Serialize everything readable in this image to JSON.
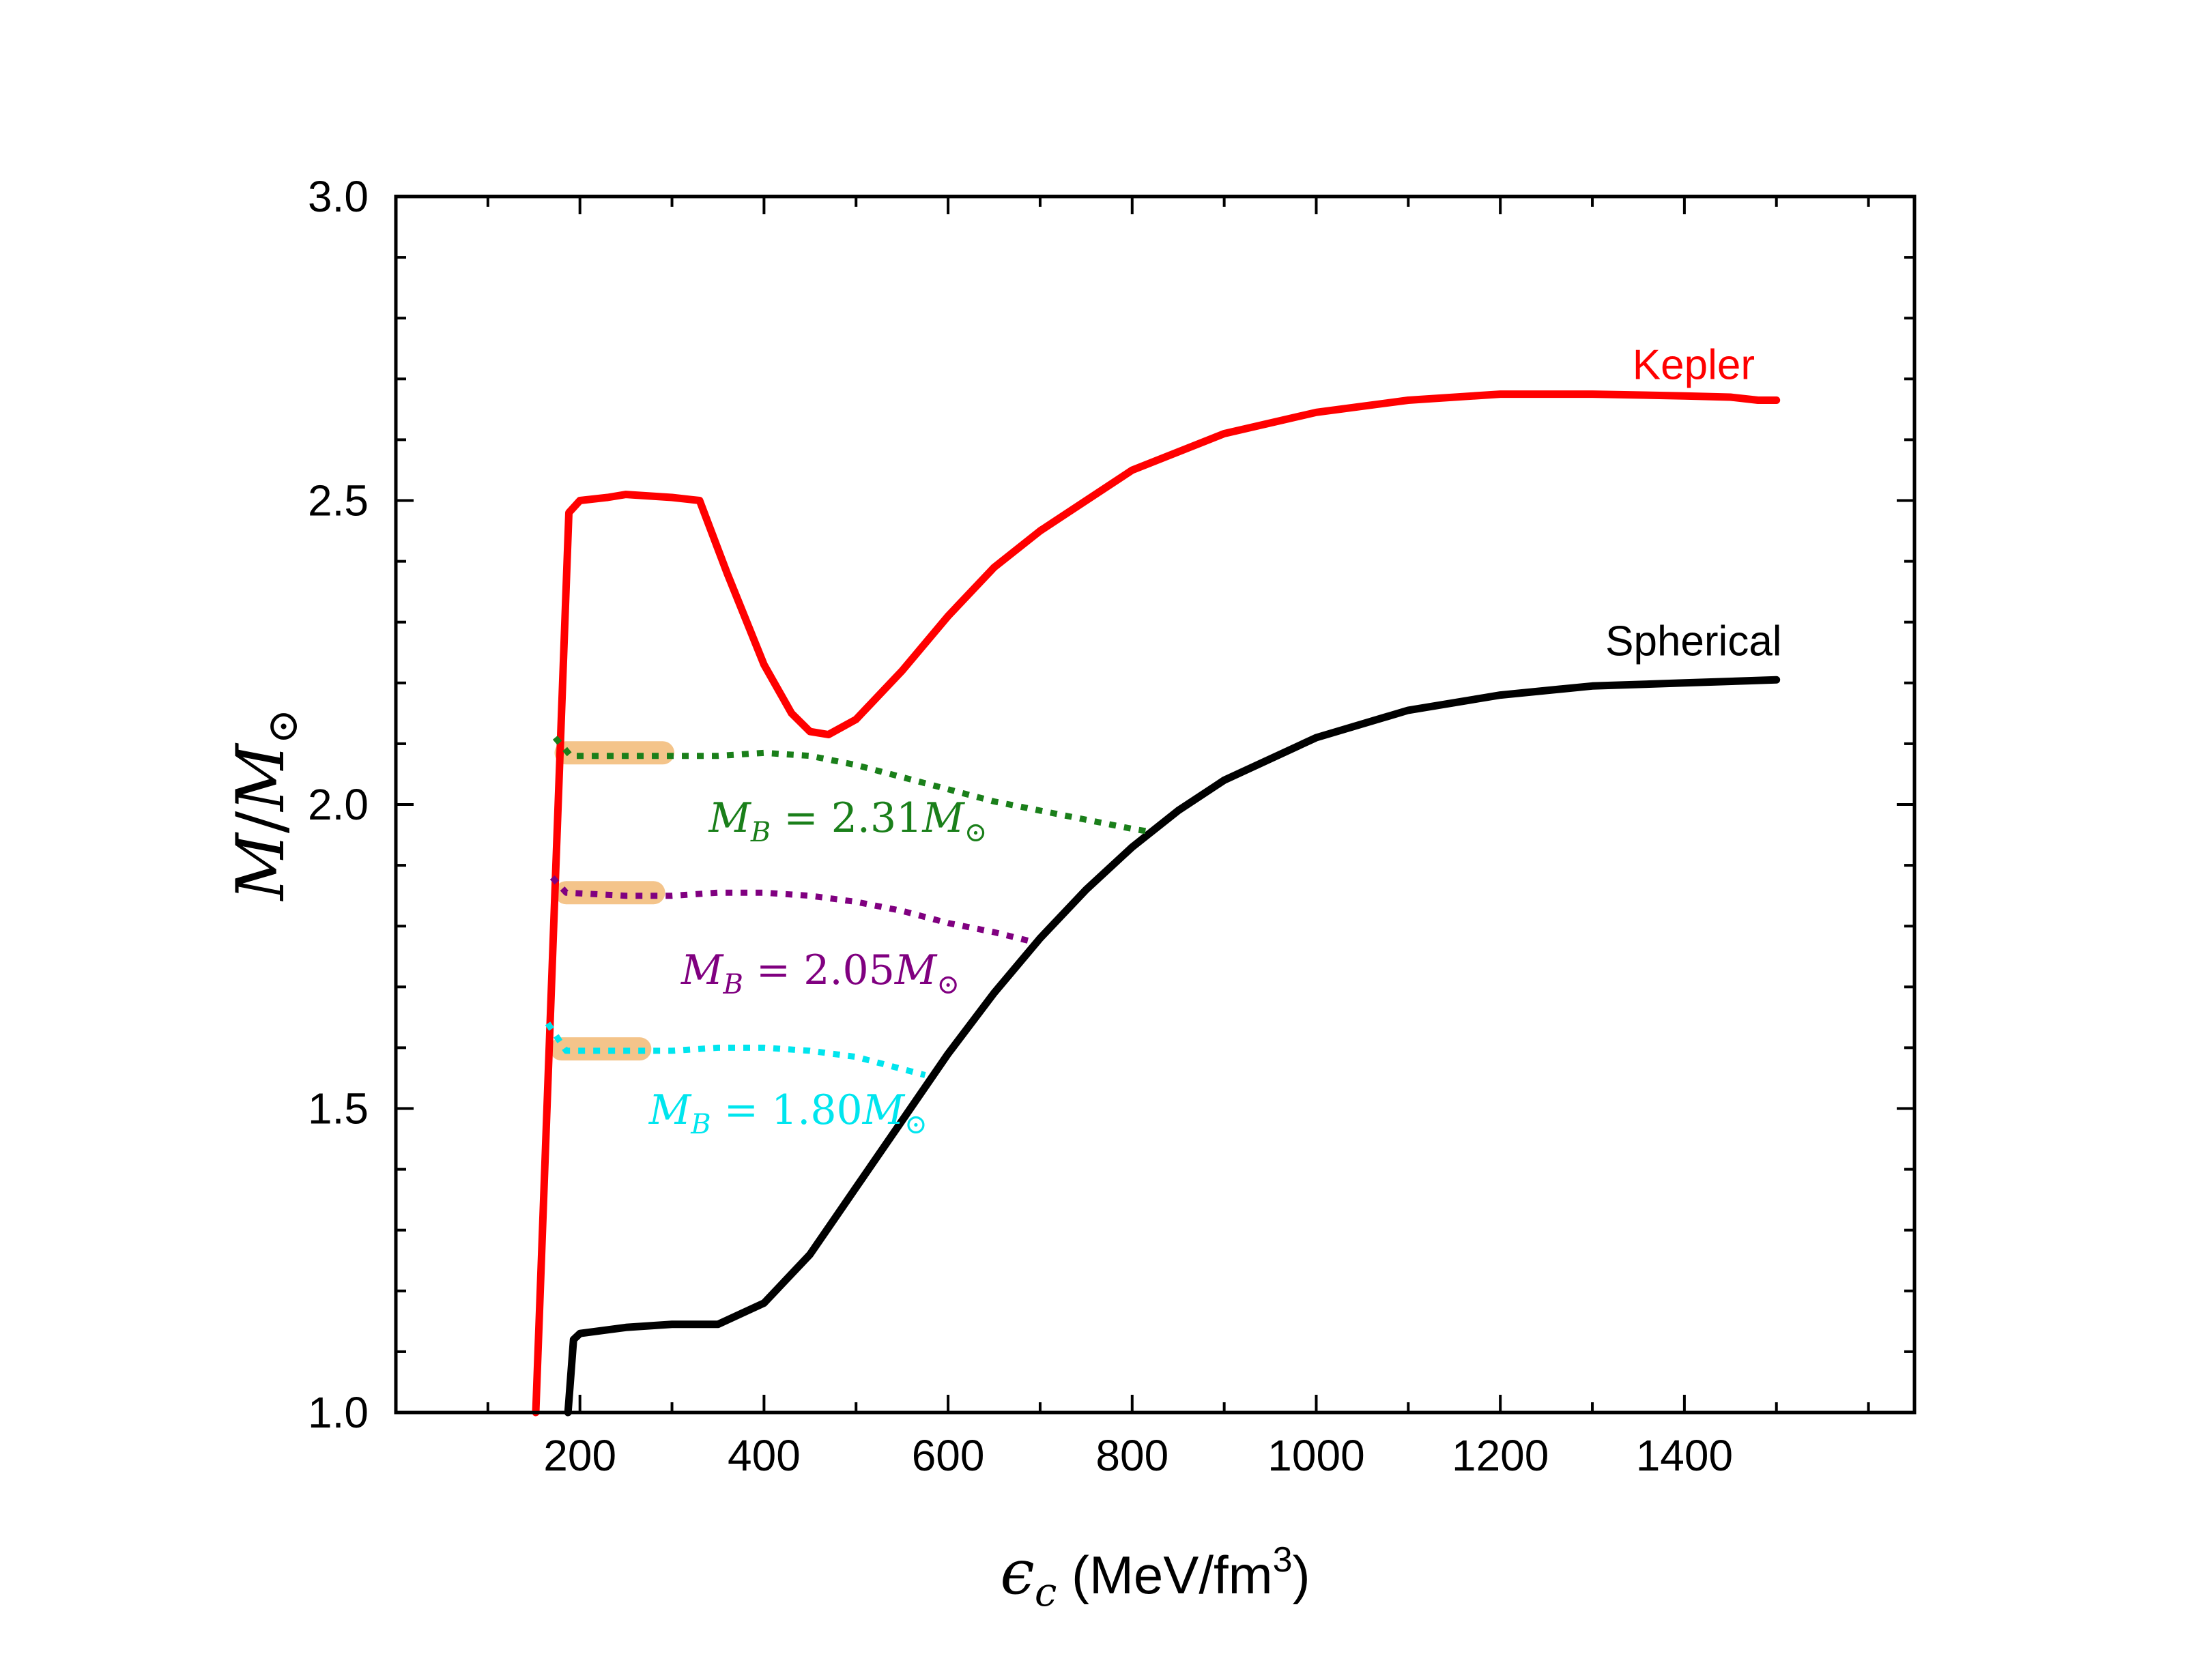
{
  "chart_data": {
    "type": "line",
    "xlabel": {
      "sym": "ϵ",
      "sub": "c",
      "unit": " (MeV/fm",
      "sup": "3",
      "close": ")"
    },
    "ylabel": {
      "a": "M",
      "slash": "/",
      "b": "M",
      "sub": "⊙"
    },
    "xlim": [
      0,
      1650
    ],
    "ylim": [
      1.0,
      3.0
    ],
    "xticks": [
      200,
      400,
      600,
      800,
      1000,
      1200,
      1400
    ],
    "xtick_labels": [
      "200",
      "400",
      "600",
      "800",
      "1000",
      "1200",
      "1400"
    ],
    "yticks": [
      1.0,
      1.5,
      2.0,
      2.5,
      3.0
    ],
    "ytick_labels": [
      "1.0",
      "1.5",
      "2.0",
      "2.5",
      "3.0"
    ],
    "grid": false,
    "colors": {
      "kepler": "#ff0000",
      "spherical": "#000000",
      "mb231": "#1a7f1a",
      "mb205": "#800080",
      "mb180": "#00e5ee",
      "highlight": "#f4c48a"
    },
    "series": [
      {
        "name": "Kepler",
        "style": "solid",
        "x": [
          152,
          188,
          200,
          230,
          250,
          300,
          330,
          360,
          400,
          430,
          450,
          470,
          500,
          550,
          600,
          650,
          700,
          800,
          900,
          1000,
          1100,
          1200,
          1300,
          1400,
          1450,
          1480,
          1500
        ],
        "y": [
          1.0,
          2.48,
          2.5,
          2.505,
          2.51,
          2.505,
          2.5,
          2.38,
          2.23,
          2.15,
          2.12,
          2.115,
          2.14,
          2.22,
          2.31,
          2.39,
          2.45,
          2.55,
          2.61,
          2.645,
          2.665,
          2.675,
          2.675,
          2.672,
          2.67,
          2.665,
          2.665
        ]
      },
      {
        "name": "Spherical",
        "style": "solid",
        "x": [
          187,
          193,
          200,
          250,
          300,
          350,
          400,
          450,
          500,
          550,
          600,
          650,
          700,
          750,
          800,
          850,
          900,
          1000,
          1100,
          1200,
          1300,
          1400,
          1500
        ],
        "y": [
          1.0,
          1.12,
          1.13,
          1.14,
          1.145,
          1.145,
          1.18,
          1.26,
          1.37,
          1.48,
          1.59,
          1.69,
          1.78,
          1.86,
          1.93,
          1.99,
          2.04,
          2.11,
          2.155,
          2.18,
          2.195,
          2.2,
          2.205
        ]
      },
      {
        "name": "M_B = 2.31M⊙",
        "style": "dotted",
        "x": [
          173,
          190,
          250,
          300,
          350,
          400,
          450,
          500,
          550,
          600,
          650,
          700,
          750,
          800,
          820
        ],
        "y": [
          2.11,
          2.08,
          2.08,
          2.08,
          2.08,
          2.085,
          2.08,
          2.065,
          2.045,
          2.025,
          2.005,
          1.99,
          1.975,
          1.96,
          1.955
        ]
      },
      {
        "name": "M_B = 2.05M⊙",
        "style": "dotted",
        "x": [
          170,
          185,
          250,
          300,
          350,
          400,
          450,
          500,
          550,
          600,
          650,
          690
        ],
        "y": [
          1.88,
          1.855,
          1.85,
          1.85,
          1.855,
          1.855,
          1.85,
          1.84,
          1.825,
          1.805,
          1.79,
          1.775
        ]
      },
      {
        "name": "M_B = 1.80M⊙",
        "style": "dotted",
        "x": [
          165,
          185,
          250,
          300,
          350,
          400,
          450,
          500,
          550,
          575
        ],
        "y": [
          1.64,
          1.595,
          1.595,
          1.595,
          1.6,
          1.6,
          1.595,
          1.585,
          1.565,
          1.555
        ]
      }
    ],
    "highlights": [
      {
        "x": [
          185,
          290
        ],
        "y": 2.085
      },
      {
        "x": [
          185,
          280
        ],
        "y": 1.855
      },
      {
        "x": [
          180,
          265
        ],
        "y": 1.598
      }
    ],
    "labels": {
      "kepler": "Kepler",
      "spherical": "Spherical"
    },
    "annotations": [
      {
        "key": "mb231",
        "M": "M",
        "sub": "B",
        "eq": " = 2.31",
        "M2": "M",
        "sun": "⊙",
        "x": 340,
        "y": 1.955
      },
      {
        "key": "mb205",
        "M": "M",
        "sub": "B",
        "eq": " = 2.05",
        "M2": "M",
        "sun": "⊙",
        "x": 310,
        "y": 1.705
      },
      {
        "key": "mb180",
        "M": "M",
        "sub": "B",
        "eq": " = 1.80",
        "M2": "M",
        "sun": "⊙",
        "x": 275,
        "y": 1.475
      }
    ]
  }
}
